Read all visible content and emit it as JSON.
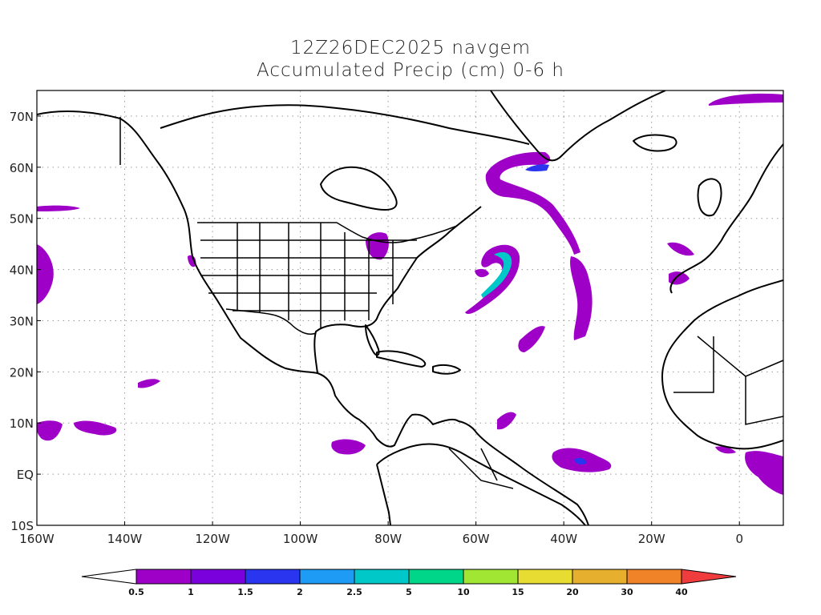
{
  "title": {
    "line1": "12Z26DEC2025 navgem",
    "line2": "Accumulated Precip (cm) 0-6 h"
  },
  "map": {
    "projection": "lat-lon",
    "lon_range": [
      -160,
      10
    ],
    "lat_range": [
      -10,
      75
    ],
    "lon_ticks": [
      {
        "value": -160,
        "label": "160W"
      },
      {
        "value": -140,
        "label": "140W"
      },
      {
        "value": -120,
        "label": "120W"
      },
      {
        "value": -100,
        "label": "100W"
      },
      {
        "value": -80,
        "label": "80W"
      },
      {
        "value": -60,
        "label": "60W"
      },
      {
        "value": -40,
        "label": "40W"
      },
      {
        "value": -20,
        "label": "20W"
      },
      {
        "value": 0,
        "label": "0"
      }
    ],
    "lat_ticks": [
      {
        "value": -10,
        "label": "10S"
      },
      {
        "value": 0,
        "label": "EQ"
      },
      {
        "value": 10,
        "label": "10N"
      },
      {
        "value": 20,
        "label": "20N"
      },
      {
        "value": 30,
        "label": "30N"
      },
      {
        "value": 40,
        "label": "40N"
      },
      {
        "value": 50,
        "label": "50N"
      },
      {
        "value": 60,
        "label": "60N"
      },
      {
        "value": 70,
        "label": "70N"
      }
    ],
    "grid": "dotted"
  },
  "colorbar": {
    "labels": [
      "0.5",
      "1",
      "1.5",
      "2",
      "2.5",
      "5",
      "10",
      "15",
      "20",
      "30",
      "40"
    ],
    "colors": [
      "#9f00c7",
      "#7a00dc",
      "#2a35f0",
      "#1e9bf5",
      "#00c8c8",
      "#00d68a",
      "#a0e632",
      "#e6dc32",
      "#e6af2d",
      "#f08228",
      "#f03c3c"
    ]
  }
}
